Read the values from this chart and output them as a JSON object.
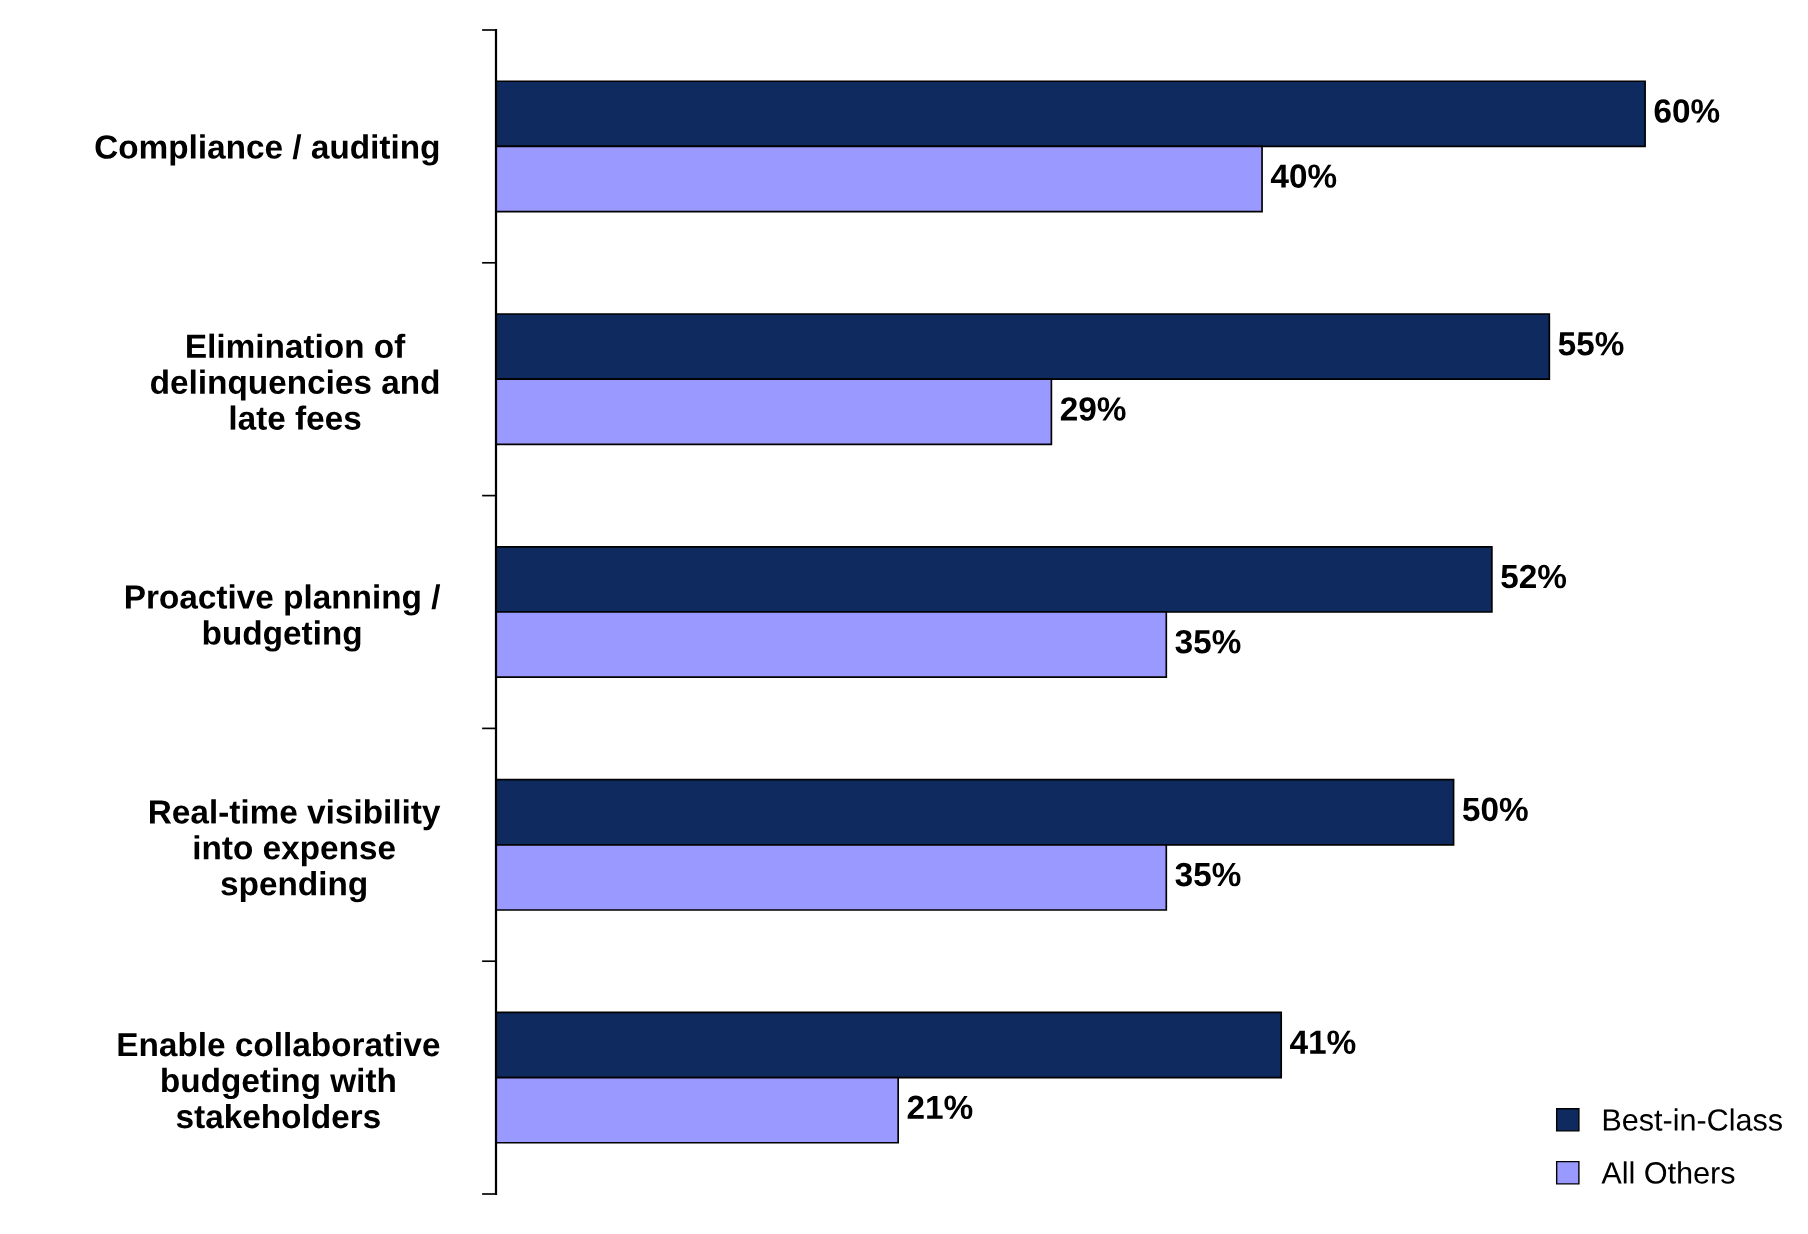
{
  "chart_data": {
    "type": "bar",
    "orientation": "horizontal",
    "categories": [
      "Compliance / auditing",
      "Elimination of\ndelinquencies and\nlate fees",
      "Proactive planning /\nbudgeting",
      "Real-time visibility\ninto expense\nspending",
      "Enable collaborative\nbudgeting with\nstakeholders"
    ],
    "series": [
      {
        "name": "Best-in-Class",
        "color": "#0f2a5e",
        "values": [
          60,
          55,
          52,
          50,
          41
        ],
        "value_labels": [
          "60%",
          "55%",
          "52%",
          "50%",
          "41%"
        ]
      },
      {
        "name": "All Others",
        "color": "#9999ff",
        "values": [
          40,
          29,
          35,
          35,
          21
        ],
        "value_labels": [
          "40%",
          "29%",
          "35%",
          "35%",
          "21%"
        ]
      }
    ],
    "legend": "bottom right",
    "grid": false
  }
}
